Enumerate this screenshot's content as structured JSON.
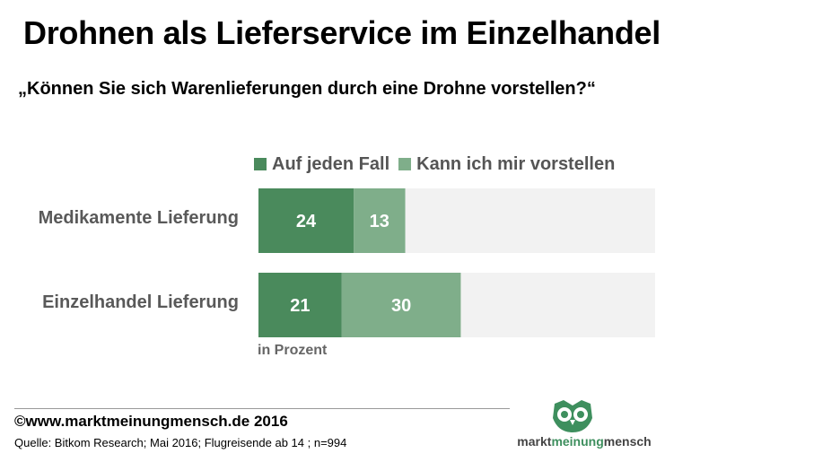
{
  "title": "Drohnen als Lieferservice im Einzelhandel",
  "subtitle": "„Können Sie sich Warenlieferungen durch eine Drohne vorstellen?“",
  "legend": [
    {
      "label": "Auf jeden Fall",
      "color": "#4a8a5c"
    },
    {
      "label": "Kann ich mir vorstellen",
      "color": "#7fae8a"
    }
  ],
  "note": "in Prozent",
  "footer": {
    "copyright": "©www.marktmeinungmensch.de 2016",
    "source": "Quelle: Bitkom Research; Mai 2016; Flugreisende ab 14 ; n=994"
  },
  "logo": {
    "part1": "markt",
    "part2": "meinung",
    "part3": "mensch",
    "color": "#3e8f5e"
  },
  "chart_data": {
    "type": "bar",
    "orientation": "horizontal",
    "stacked": true,
    "categories": [
      "Medikamente Lieferung",
      "Einzelhandel Lieferung"
    ],
    "series": [
      {
        "name": "Auf jeden Fall",
        "values": [
          24,
          21
        ],
        "color": "#4a8a5c"
      },
      {
        "name": "Kann ich mir vorstellen",
        "values": [
          13,
          30
        ],
        "color": "#7fae8a"
      }
    ],
    "xlim": [
      0,
      100
    ],
    "background_color": "#f2f2f2",
    "unit": "in Prozent"
  }
}
